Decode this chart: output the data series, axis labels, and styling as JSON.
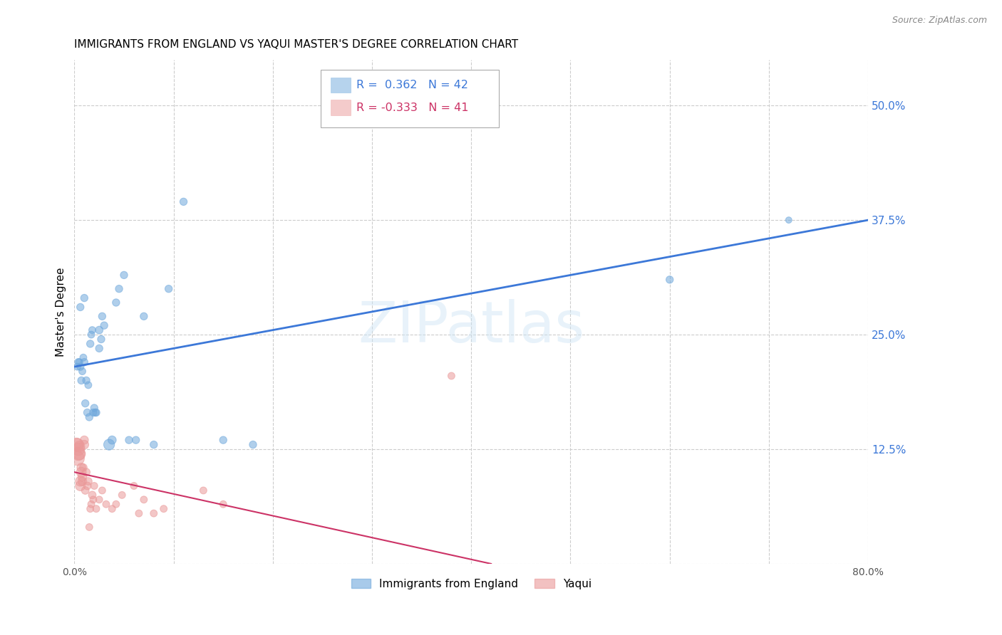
{
  "title": "IMMIGRANTS FROM ENGLAND VS YAQUI MASTER'S DEGREE CORRELATION CHART",
  "source_text": "Source: ZipAtlas.com",
  "ylabel": "Master's Degree",
  "xlim": [
    0.0,
    0.8
  ],
  "ylim": [
    0.0,
    0.55
  ],
  "y_ticks": [
    0.0,
    0.125,
    0.25,
    0.375,
    0.5
  ],
  "y_tick_labels": [
    "",
    "12.5%",
    "25.0%",
    "37.5%",
    "50.0%"
  ],
  "blue_R": 0.362,
  "blue_N": 42,
  "pink_R": -0.333,
  "pink_N": 41,
  "watermark": "ZIPatlas",
  "legend_label_blue": "Immigrants from England",
  "legend_label_pink": "Yaqui",
  "blue_color": "#6fa8dc",
  "pink_color": "#ea9999",
  "line_blue_color": "#3c78d8",
  "line_pink_color": "#cc3366",
  "blue_line_x0": 0.0,
  "blue_line_y0": 0.215,
  "blue_line_x1": 0.8,
  "blue_line_y1": 0.375,
  "pink_line_x0": 0.0,
  "pink_line_y0": 0.1,
  "pink_line_x1": 0.42,
  "pink_line_y1": 0.0,
  "blue_scatter_x": [
    0.003,
    0.005,
    0.006,
    0.007,
    0.008,
    0.009,
    0.01,
    0.011,
    0.012,
    0.013,
    0.014,
    0.015,
    0.016,
    0.017,
    0.018,
    0.019,
    0.02,
    0.021,
    0.022,
    0.025,
    0.027,
    0.028,
    0.03,
    0.035,
    0.038,
    0.042,
    0.045,
    0.05,
    0.055,
    0.062,
    0.07,
    0.08,
    0.095,
    0.11,
    0.15,
    0.18,
    0.6,
    0.72,
    0.004,
    0.006,
    0.01,
    0.025
  ],
  "blue_scatter_y": [
    0.215,
    0.22,
    0.215,
    0.2,
    0.21,
    0.225,
    0.22,
    0.175,
    0.2,
    0.165,
    0.195,
    0.16,
    0.24,
    0.25,
    0.255,
    0.165,
    0.17,
    0.165,
    0.165,
    0.255,
    0.245,
    0.27,
    0.26,
    0.13,
    0.135,
    0.285,
    0.3,
    0.315,
    0.135,
    0.135,
    0.27,
    0.13,
    0.3,
    0.395,
    0.135,
    0.13,
    0.31,
    0.375,
    0.22,
    0.28,
    0.29,
    0.235
  ],
  "blue_scatter_size": [
    50,
    50,
    55,
    55,
    50,
    50,
    55,
    55,
    55,
    55,
    50,
    55,
    55,
    50,
    50,
    55,
    55,
    55,
    55,
    60,
    55,
    55,
    55,
    120,
    70,
    55,
    55,
    55,
    55,
    55,
    55,
    55,
    55,
    55,
    55,
    55,
    55,
    40,
    55,
    55,
    55,
    55
  ],
  "pink_scatter_x": [
    0.002,
    0.003,
    0.003,
    0.004,
    0.004,
    0.005,
    0.005,
    0.006,
    0.006,
    0.007,
    0.007,
    0.008,
    0.008,
    0.009,
    0.01,
    0.01,
    0.011,
    0.012,
    0.013,
    0.014,
    0.015,
    0.016,
    0.017,
    0.018,
    0.019,
    0.02,
    0.022,
    0.025,
    0.028,
    0.032,
    0.038,
    0.042,
    0.048,
    0.06,
    0.065,
    0.07,
    0.08,
    0.09,
    0.13,
    0.15,
    0.38
  ],
  "pink_scatter_y": [
    0.13,
    0.115,
    0.13,
    0.12,
    0.125,
    0.12,
    0.128,
    0.085,
    0.09,
    0.1,
    0.105,
    0.09,
    0.095,
    0.105,
    0.13,
    0.135,
    0.08,
    0.1,
    0.085,
    0.09,
    0.04,
    0.06,
    0.065,
    0.075,
    0.07,
    0.085,
    0.06,
    0.07,
    0.08,
    0.065,
    0.06,
    0.065,
    0.075,
    0.085,
    0.055,
    0.07,
    0.055,
    0.06,
    0.08,
    0.065,
    0.205
  ],
  "pink_scatter_size": [
    180,
    200,
    160,
    180,
    160,
    150,
    120,
    100,
    100,
    100,
    80,
    80,
    80,
    60,
    80,
    70,
    60,
    60,
    60,
    60,
    50,
    50,
    50,
    60,
    50,
    50,
    50,
    50,
    50,
    50,
    50,
    50,
    50,
    50,
    50,
    50,
    50,
    50,
    50,
    50,
    50
  ],
  "background_color": "#ffffff",
  "grid_color": "#cccccc",
  "title_fontsize": 11,
  "tick_label_color_y": "#3c78d8",
  "tick_label_color_x": "#555555"
}
